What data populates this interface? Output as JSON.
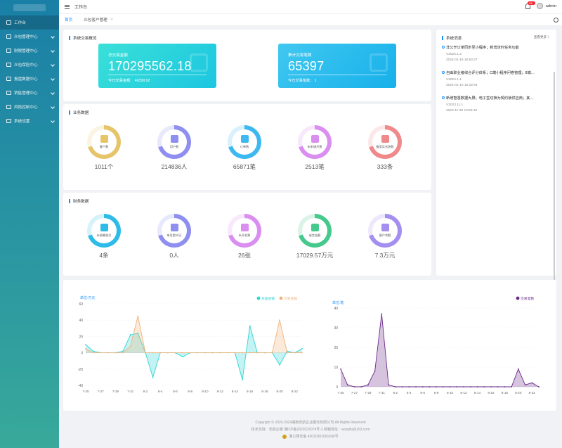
{
  "sidebar": {
    "logo": "",
    "items": [
      {
        "label": "工作台",
        "icon": "monitor-icon",
        "active": true,
        "expand": false
      },
      {
        "label": "众包管理中心",
        "icon": "grid-icon",
        "expand": true
      },
      {
        "label": "财税管理中心",
        "icon": "tax-icon",
        "expand": true
      },
      {
        "label": "众包保险中心",
        "icon": "shield-icon",
        "expand": true
      },
      {
        "label": "报盘数据中心",
        "icon": "chart-icon",
        "expand": true
      },
      {
        "label": "销售管理中心",
        "icon": "sales-icon",
        "expand": true
      },
      {
        "label": "风险控制中心",
        "icon": "risk-icon",
        "expand": true
      },
      {
        "label": "系统设置",
        "icon": "gear-icon",
        "expand": true
      }
    ]
  },
  "header": {
    "title": "工作台",
    "badge": "99+",
    "user": "admin"
  },
  "tabs": [
    {
      "label": "首页",
      "active": true
    },
    {
      "label": "众包客户管理",
      "close": "×"
    }
  ],
  "overview": {
    "title": "系统交易概览",
    "cards": [
      {
        "label": "总交易金额",
        "value": "170295562.18",
        "sub_label": "今日交易金额：",
        "sub_value": "46399.92"
      },
      {
        "label": "累计交易笔数",
        "value": "65397",
        "sub_label": "今日交易笔数：",
        "sub_value": "1"
      }
    ]
  },
  "business": {
    "title": "业务数据",
    "items": [
      {
        "label": "客户数",
        "value": "1011个",
        "color": "#e6c56a",
        "icon": "building-icon"
      },
      {
        "label": "用户数",
        "value": "214836人",
        "color": "#8e8ff0",
        "icon": "users-icon"
      },
      {
        "label": "订单数",
        "value": "65871笔",
        "color": "#3db8f0",
        "icon": "order-icon"
      },
      {
        "label": "未申请开票",
        "value": "2513笔",
        "color": "#d98ef0",
        "icon": "invoice-icon"
      },
      {
        "label": "备案实名照数",
        "value": "333条",
        "color": "#f08a8a",
        "icon": "doc-check-icon"
      }
    ]
  },
  "finance": {
    "title": "财务数据",
    "items": [
      {
        "label": "未结算批次",
        "value": "4条",
        "color": "#2fbbe8",
        "icon": "yuan-icon"
      },
      {
        "label": "单月超10万",
        "value": "0人",
        "color": "#8e8ff0",
        "icon": "users-icon"
      },
      {
        "label": "未开发票",
        "value": "26张",
        "color": "#d98ef0",
        "icon": "invoice-icon"
      },
      {
        "label": "成交金额",
        "value": "17029.57万元",
        "color": "#46c98c",
        "icon": "coins-icon"
      },
      {
        "label": "客户余额",
        "value": "7.3万元",
        "color": "#a48ef0",
        "icon": "wallet-icon"
      }
    ]
  },
  "messages": {
    "title": "系统消息",
    "more": "查看更多 〉",
    "items": [
      {
        "title": "非公开订单同步至小程序；新增定时任务功能",
        "version": "V2024.1.2",
        "date": "2024-01-16 16:50:27"
      },
      {
        "title": "自由职业者综合评分体系；C端小程序问卷管理；8端…",
        "version": "V2024.1.1",
        "date": "2024-01-10 15:32:54"
      },
      {
        "title": "新增智慧数据大屏；电子签切换为契约锁供应商；其…",
        "version": "V2023.11.1",
        "date": "2023-11-30 13:56:15"
      }
    ]
  },
  "footer": {
    "line1": "Copyright © 2020-2024湖南安航企业服务有限公司 All Rights Reserved",
    "line2": "技术支持：安航企服  湘ICP备2022023074号-2   邮箱地址：anyqifu@163.com",
    "line3": "湘公网安备 43010302001696号"
  },
  "chart_data": [
    {
      "type": "area",
      "unit_label": "单位:万元",
      "x": [
        "7-25",
        "7-26",
        "7-27",
        "7-28",
        "7-29",
        "7-30",
        "7-31",
        "8-1",
        "8-2",
        "8-3",
        "8-4",
        "8-5",
        "8-6",
        "8-7",
        "8-8",
        "8-9",
        "8-10",
        "8-11",
        "8-12",
        "8-13",
        "8-14",
        "8-15",
        "8-16",
        "8-17",
        "8-18",
        "8-19",
        "8-20",
        "8-21",
        "8-22",
        "8-23"
      ],
      "x_tick_labels": [
        "7-25",
        "7-27",
        "7-29",
        "7-31",
        "8-2",
        "8-4",
        "8-6",
        "8-8",
        "8-10",
        "8-12",
        "8-14",
        "8-16",
        "8-18",
        "8-20",
        "8-22"
      ],
      "y_ticks": [
        -40,
        -20,
        0,
        20,
        40,
        60
      ],
      "ylim": [
        -40,
        60
      ],
      "series": [
        {
          "name": "充值金额",
          "color": "#2dd4d4",
          "values": [
            10,
            2,
            0,
            0,
            0,
            2,
            22,
            24,
            0,
            -30,
            0,
            0,
            0,
            -5,
            0,
            0,
            0,
            0,
            0,
            0,
            0,
            -33,
            33,
            0,
            0,
            0,
            -15,
            2,
            0,
            5
          ]
        },
        {
          "name": "交易金额",
          "color": "#f0b27a",
          "values": [
            5,
            0,
            0,
            0,
            0,
            0,
            8,
            45,
            0,
            0,
            0,
            0,
            0,
            0,
            0,
            0,
            0,
            0,
            0,
            0,
            0,
            0,
            0,
            0,
            0,
            0,
            40,
            0,
            0,
            0
          ]
        }
      ]
    },
    {
      "type": "area",
      "unit_label": "单位:笔",
      "x": [
        "7-25",
        "7-26",
        "7-27",
        "7-28",
        "7-29",
        "7-30",
        "7-31",
        "8-1",
        "8-2",
        "8-3",
        "8-4",
        "8-5",
        "8-6",
        "8-7",
        "8-8",
        "8-9",
        "8-10",
        "8-11",
        "8-12",
        "8-13",
        "8-14",
        "8-15",
        "8-16",
        "8-17",
        "8-18",
        "8-19",
        "8-20",
        "8-21",
        "8-22",
        "8-23"
      ],
      "x_tick_labels": [
        "7-25",
        "7-27",
        "7-29",
        "7-31",
        "8-2",
        "8-4",
        "8-6",
        "8-8",
        "8-10",
        "8-12",
        "8-14",
        "8-16",
        "8-18",
        "8-20",
        "8-22"
      ],
      "y_ticks": [
        0,
        10,
        20,
        30,
        40
      ],
      "ylim": [
        0,
        40
      ],
      "series": [
        {
          "name": "交易笔数",
          "color": "#6a2a8a",
          "values": [
            9,
            1,
            0,
            0,
            1,
            8,
            37,
            1,
            0,
            0,
            0,
            0,
            0,
            0,
            0,
            0,
            0,
            0,
            0,
            0,
            0,
            0,
            0,
            0,
            0,
            0,
            9,
            1,
            2,
            0
          ]
        }
      ]
    }
  ]
}
